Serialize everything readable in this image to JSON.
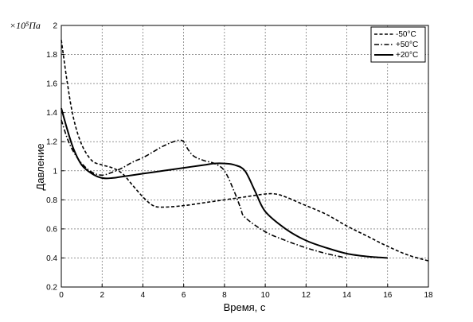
{
  "chart_data": {
    "type": "line",
    "title": "",
    "xlabel": "Время, с",
    "ylabel": "Давление",
    "y_unit_label": "×10⁵Па",
    "xlim": [
      0,
      18
    ],
    "ylim": [
      0.2,
      2
    ],
    "xticks": [
      "0",
      "2",
      "4",
      "6",
      "8",
      "10",
      "12",
      "14",
      "16",
      "18"
    ],
    "yticks": [
      "0.2",
      "0.4",
      "0.6",
      "0.8",
      "1",
      "1.2",
      "1.4",
      "1.6",
      "1.8",
      "2"
    ],
    "grid": true,
    "legend_position": "top-right",
    "series": [
      {
        "name": "-50°C",
        "style": "dashed",
        "x": [
          0,
          0.3,
          0.6,
          1.0,
          1.5,
          2.0,
          2.5,
          3.0,
          3.5,
          4.0,
          4.5,
          5.0,
          6.0,
          7.0,
          8.0,
          9.0,
          10.0,
          10.5,
          11.0,
          12.0,
          13.0,
          14.0,
          15.0,
          16.0,
          17.0,
          18.0
        ],
        "y": [
          1.9,
          1.6,
          1.36,
          1.18,
          1.07,
          1.04,
          1.02,
          0.98,
          0.9,
          0.82,
          0.76,
          0.75,
          0.76,
          0.78,
          0.8,
          0.82,
          0.84,
          0.84,
          0.82,
          0.76,
          0.7,
          0.62,
          0.55,
          0.48,
          0.42,
          0.38
        ]
      },
      {
        "name": "+50°C",
        "style": "dash-dot",
        "x": [
          0,
          0.3,
          0.6,
          1.0,
          1.5,
          2.0,
          2.5,
          3.0,
          3.5,
          4.0,
          4.5,
          5.0,
          5.5,
          5.8,
          6.0,
          6.2,
          6.5,
          7.0,
          7.5,
          8.0,
          8.5,
          8.8,
          9.0,
          10.0,
          11.0,
          12.0,
          13.0,
          14.0
        ],
        "y": [
          1.35,
          1.22,
          1.13,
          1.05,
          0.99,
          0.97,
          0.99,
          1.02,
          1.06,
          1.09,
          1.13,
          1.17,
          1.2,
          1.21,
          1.2,
          1.15,
          1.1,
          1.07,
          1.05,
          1.0,
          0.85,
          0.74,
          0.68,
          0.58,
          0.52,
          0.47,
          0.43,
          0.4
        ]
      },
      {
        "name": "+20°C",
        "style": "solid",
        "x": [
          0,
          0.3,
          0.6,
          1.0,
          1.5,
          2.0,
          2.5,
          3.0,
          4.0,
          5.0,
          6.0,
          7.0,
          7.5,
          8.0,
          8.5,
          9.0,
          9.5,
          10.0,
          11.0,
          12.0,
          13.0,
          14.0,
          15.0,
          16.0
        ],
        "y": [
          1.43,
          1.28,
          1.15,
          1.04,
          0.98,
          0.95,
          0.95,
          0.96,
          0.98,
          1.0,
          1.02,
          1.04,
          1.05,
          1.05,
          1.04,
          1.0,
          0.86,
          0.72,
          0.6,
          0.52,
          0.47,
          0.43,
          0.41,
          0.4
        ]
      }
    ]
  }
}
